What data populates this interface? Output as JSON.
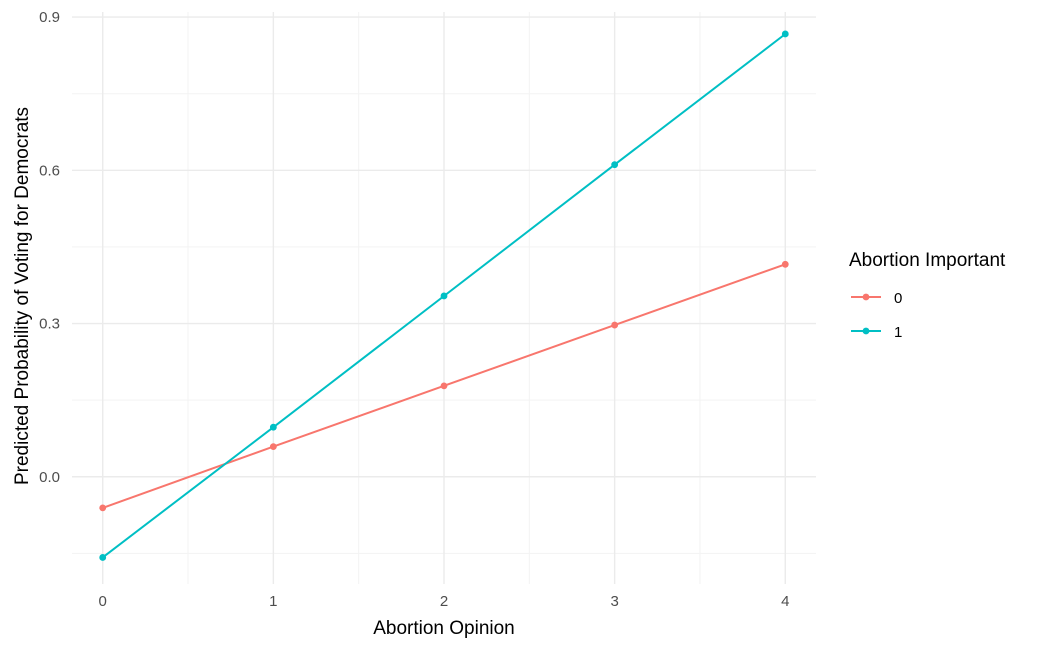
{
  "chart_data": {
    "type": "line",
    "xlabel": "Abortion Opinion",
    "ylabel": "Predicted Probability of Voting for Democrats",
    "x": [
      0,
      1,
      2,
      3,
      4
    ],
    "x_ticks": [
      "0",
      "1",
      "2",
      "3",
      "4"
    ],
    "y_ticks": [
      "0.0",
      "0.3",
      "0.6",
      "0.9"
    ],
    "xlim": [
      -0.18,
      4.18
    ],
    "ylim": [
      -0.21,
      0.91
    ],
    "grid": true,
    "legend": {
      "title": "Abortion Important",
      "placement": "right"
    },
    "series": [
      {
        "name": "0",
        "color": "#F8766D",
        "values": [
          -0.061,
          0.059,
          0.178,
          0.297,
          0.416
        ]
      },
      {
        "name": "1",
        "color": "#00BFC4",
        "values": [
          -0.158,
          0.097,
          0.354,
          0.611,
          0.867
        ]
      }
    ]
  }
}
